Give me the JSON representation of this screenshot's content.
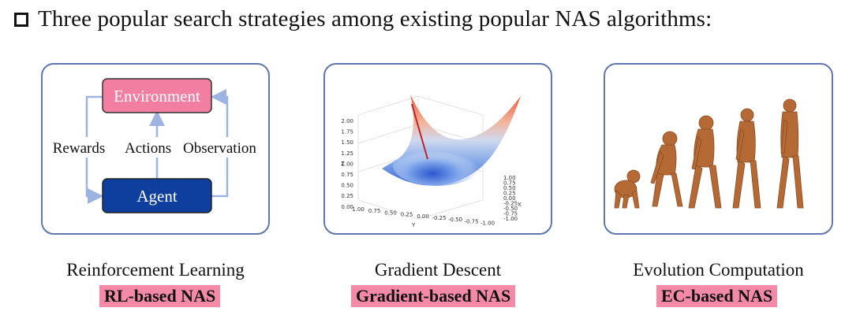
{
  "header": {
    "title": "Three popular search strategies among existing popular NAS algorithms:"
  },
  "rl": {
    "environment": "Environment",
    "agent": "Agent",
    "rewards": "Rewards",
    "actions": "Actions",
    "observation": "Observation",
    "caption": "Reinforcement Learning",
    "tag": "RL-based NAS"
  },
  "gd": {
    "caption": "Gradient Descent",
    "tag": "Gradient-based NAS",
    "z_label": "Z",
    "x_label": "X",
    "y_label": "Y",
    "z_ticks": [
      "2.00",
      "1.75",
      "1.50",
      "1.25",
      "1.00",
      "0.75",
      "0.50",
      "0.25",
      "0.00"
    ],
    "x_ticks": [
      "1.00",
      "0.75",
      "0.50",
      "0.25",
      "0.00",
      "-0.25",
      "-0.50",
      "-0.75",
      "-1.00"
    ],
    "y_ticks": [
      "1.00",
      "0.75",
      "0.50",
      "0.25",
      "0.00",
      "-0.25",
      "-0.50",
      "-0.75",
      "-1.00"
    ]
  },
  "ec": {
    "caption": "Evolution Computation",
    "tag": "EC-based NAS"
  },
  "colors": {
    "panel_border": "#5f76ae",
    "environment_fill": "#f27fa2",
    "agent_fill": "#0e3f9e",
    "tag_bg": "#f58aa8",
    "arrow": "#9db4e2"
  }
}
